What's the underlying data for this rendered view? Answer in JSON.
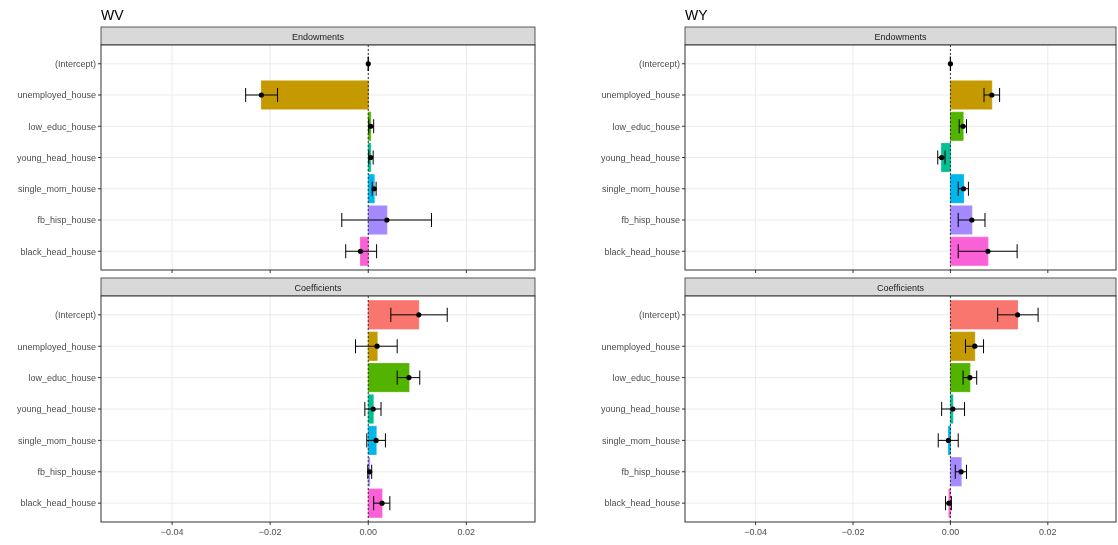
{
  "chart_data": [
    {
      "type": "bar",
      "orientation": "horizontal",
      "title": "WV",
      "subtitle": "Endowments",
      "categories": [
        "(Intercept)",
        "unemployed_house",
        "low_educ_house",
        "young_head_house",
        "single_mom_house",
        "fb_hisp_house",
        "black_head_house"
      ],
      "values": [
        0,
        -0.0218,
        0.0005,
        0.0005,
        0.0012,
        0.0038,
        -0.0016
      ],
      "colors": [
        "#f8766d",
        "#c49a00",
        "#53b400",
        "#00c094",
        "#00b6eb",
        "#a58aff",
        "#fb61d7"
      ],
      "errors": [
        [
          0,
          0
        ],
        [
          -0.025,
          -0.0185
        ],
        [
          0.0001,
          0.0011
        ],
        [
          0.0001,
          0.001
        ],
        [
          0.0008,
          0.0016
        ],
        [
          -0.0054,
          0.0129
        ],
        [
          -0.0046,
          0.0017
        ]
      ],
      "xlim": [
        -0.0545,
        0.034
      ],
      "xticks": [
        {
          "value": -0.04,
          "label": null
        },
        {
          "value": -0.02,
          "label": null
        },
        {
          "value": 0,
          "label": null
        },
        {
          "value": 0.02,
          "label": null
        }
      ],
      "grid": true,
      "tick_labels": "y",
      "ref_lines": [
        {
          "axis": "x",
          "value": 0,
          "line_style": "dotted",
          "color": "#333333"
        }
      ]
    },
    {
      "type": "bar",
      "orientation": "horizontal",
      "title": "WY",
      "subtitle": "Endowments",
      "categories": [
        "(Intercept)",
        "unemployed_house",
        "low_educ_house",
        "young_head_house",
        "single_mom_house",
        "fb_hisp_house",
        "black_head_house"
      ],
      "values": [
        0,
        0.0085,
        0.0026,
        -0.0018,
        0.0027,
        0.0044,
        0.0077
      ],
      "colors": [
        "#f8766d",
        "#c49a00",
        "#53b400",
        "#00c094",
        "#00b6eb",
        "#a58aff",
        "#fb61d7"
      ],
      "errors": [
        [
          0,
          0
        ],
        [
          0.0069,
          0.0101
        ],
        [
          0.0018,
          0.0033
        ],
        [
          -0.0026,
          -0.0011
        ],
        [
          0.0016,
          0.0037
        ],
        [
          0.0016,
          0.0071
        ],
        [
          0.0016,
          0.0137
        ]
      ],
      "xlim": [
        -0.0545,
        0.034
      ],
      "xticks": [
        {
          "value": -0.04,
          "label": null
        },
        {
          "value": -0.02,
          "label": null
        },
        {
          "value": 0,
          "label": null
        },
        {
          "value": 0.02,
          "label": null
        }
      ],
      "grid": true,
      "tick_labels": "y",
      "ref_lines": [
        {
          "axis": "x",
          "value": 0,
          "line_style": "dotted",
          "color": "#333333"
        }
      ]
    },
    {
      "type": "bar",
      "orientation": "horizontal",
      "subtitle": "Coefficients",
      "categories": [
        "(Intercept)",
        "unemployed_house",
        "low_educ_house",
        "young_head_house",
        "single_mom_house",
        "fb_hisp_house",
        "black_head_house"
      ],
      "values": [
        0.0103,
        0.0018,
        0.0083,
        0.001,
        0.0016,
        0.0003,
        0.0028
      ],
      "colors": [
        "#f8766d",
        "#c49a00",
        "#53b400",
        "#00c094",
        "#00b6eb",
        "#a58aff",
        "#fb61d7"
      ],
      "errors": [
        [
          0.0046,
          0.0161
        ],
        [
          -0.0026,
          0.0059
        ],
        [
          0.0059,
          0.0105
        ],
        [
          -0.0007,
          0.0026
        ],
        [
          -0.0003,
          0.0035
        ],
        [
          -0.0001,
          0.0007
        ],
        [
          0.0011,
          0.0044
        ]
      ],
      "xlim": [
        -0.0545,
        0.034
      ],
      "xticks": [
        {
          "value": -0.04,
          "label": "−0.04"
        },
        {
          "value": -0.02,
          "label": "−0.02"
        },
        {
          "value": 0,
          "label": "0.00"
        },
        {
          "value": 0.02,
          "label": "0.02"
        }
      ],
      "grid": true,
      "ref_lines": [
        {
          "axis": "x",
          "value": 0,
          "line_style": "dotted",
          "color": "#333333"
        }
      ]
    },
    {
      "type": "bar",
      "orientation": "horizontal",
      "subtitle": "Coefficients",
      "categories": [
        "(Intercept)",
        "unemployed_house",
        "low_educ_house",
        "young_head_house",
        "single_mom_house",
        "fb_hisp_house",
        "black_head_house"
      ],
      "values": [
        0.0138,
        0.005,
        0.004,
        0.0005,
        -0.0004,
        0.0022,
        -0.0003
      ],
      "colors": [
        "#f8766d",
        "#c49a00",
        "#53b400",
        "#00c094",
        "#00b6eb",
        "#a58aff",
        "#fb61d7"
      ],
      "errors": [
        [
          0.0097,
          0.018
        ],
        [
          0.0031,
          0.0068
        ],
        [
          0.0026,
          0.0054
        ],
        [
          -0.0018,
          0.0029
        ],
        [
          -0.0025,
          0.0016
        ],
        [
          0.001,
          0.0033
        ],
        [
          -0.001,
          0.0002
        ]
      ],
      "xlim": [
        -0.0545,
        0.034
      ],
      "xticks": [
        {
          "value": -0.04,
          "label": "−0.04"
        },
        {
          "value": -0.02,
          "label": "−0.02"
        },
        {
          "value": 0,
          "label": "0.00"
        },
        {
          "value": 0.02,
          "label": "0.02"
        }
      ],
      "grid": true,
      "ref_lines": [
        {
          "axis": "x",
          "value": 0,
          "line_style": "dotted",
          "color": "#333333"
        }
      ]
    }
  ]
}
